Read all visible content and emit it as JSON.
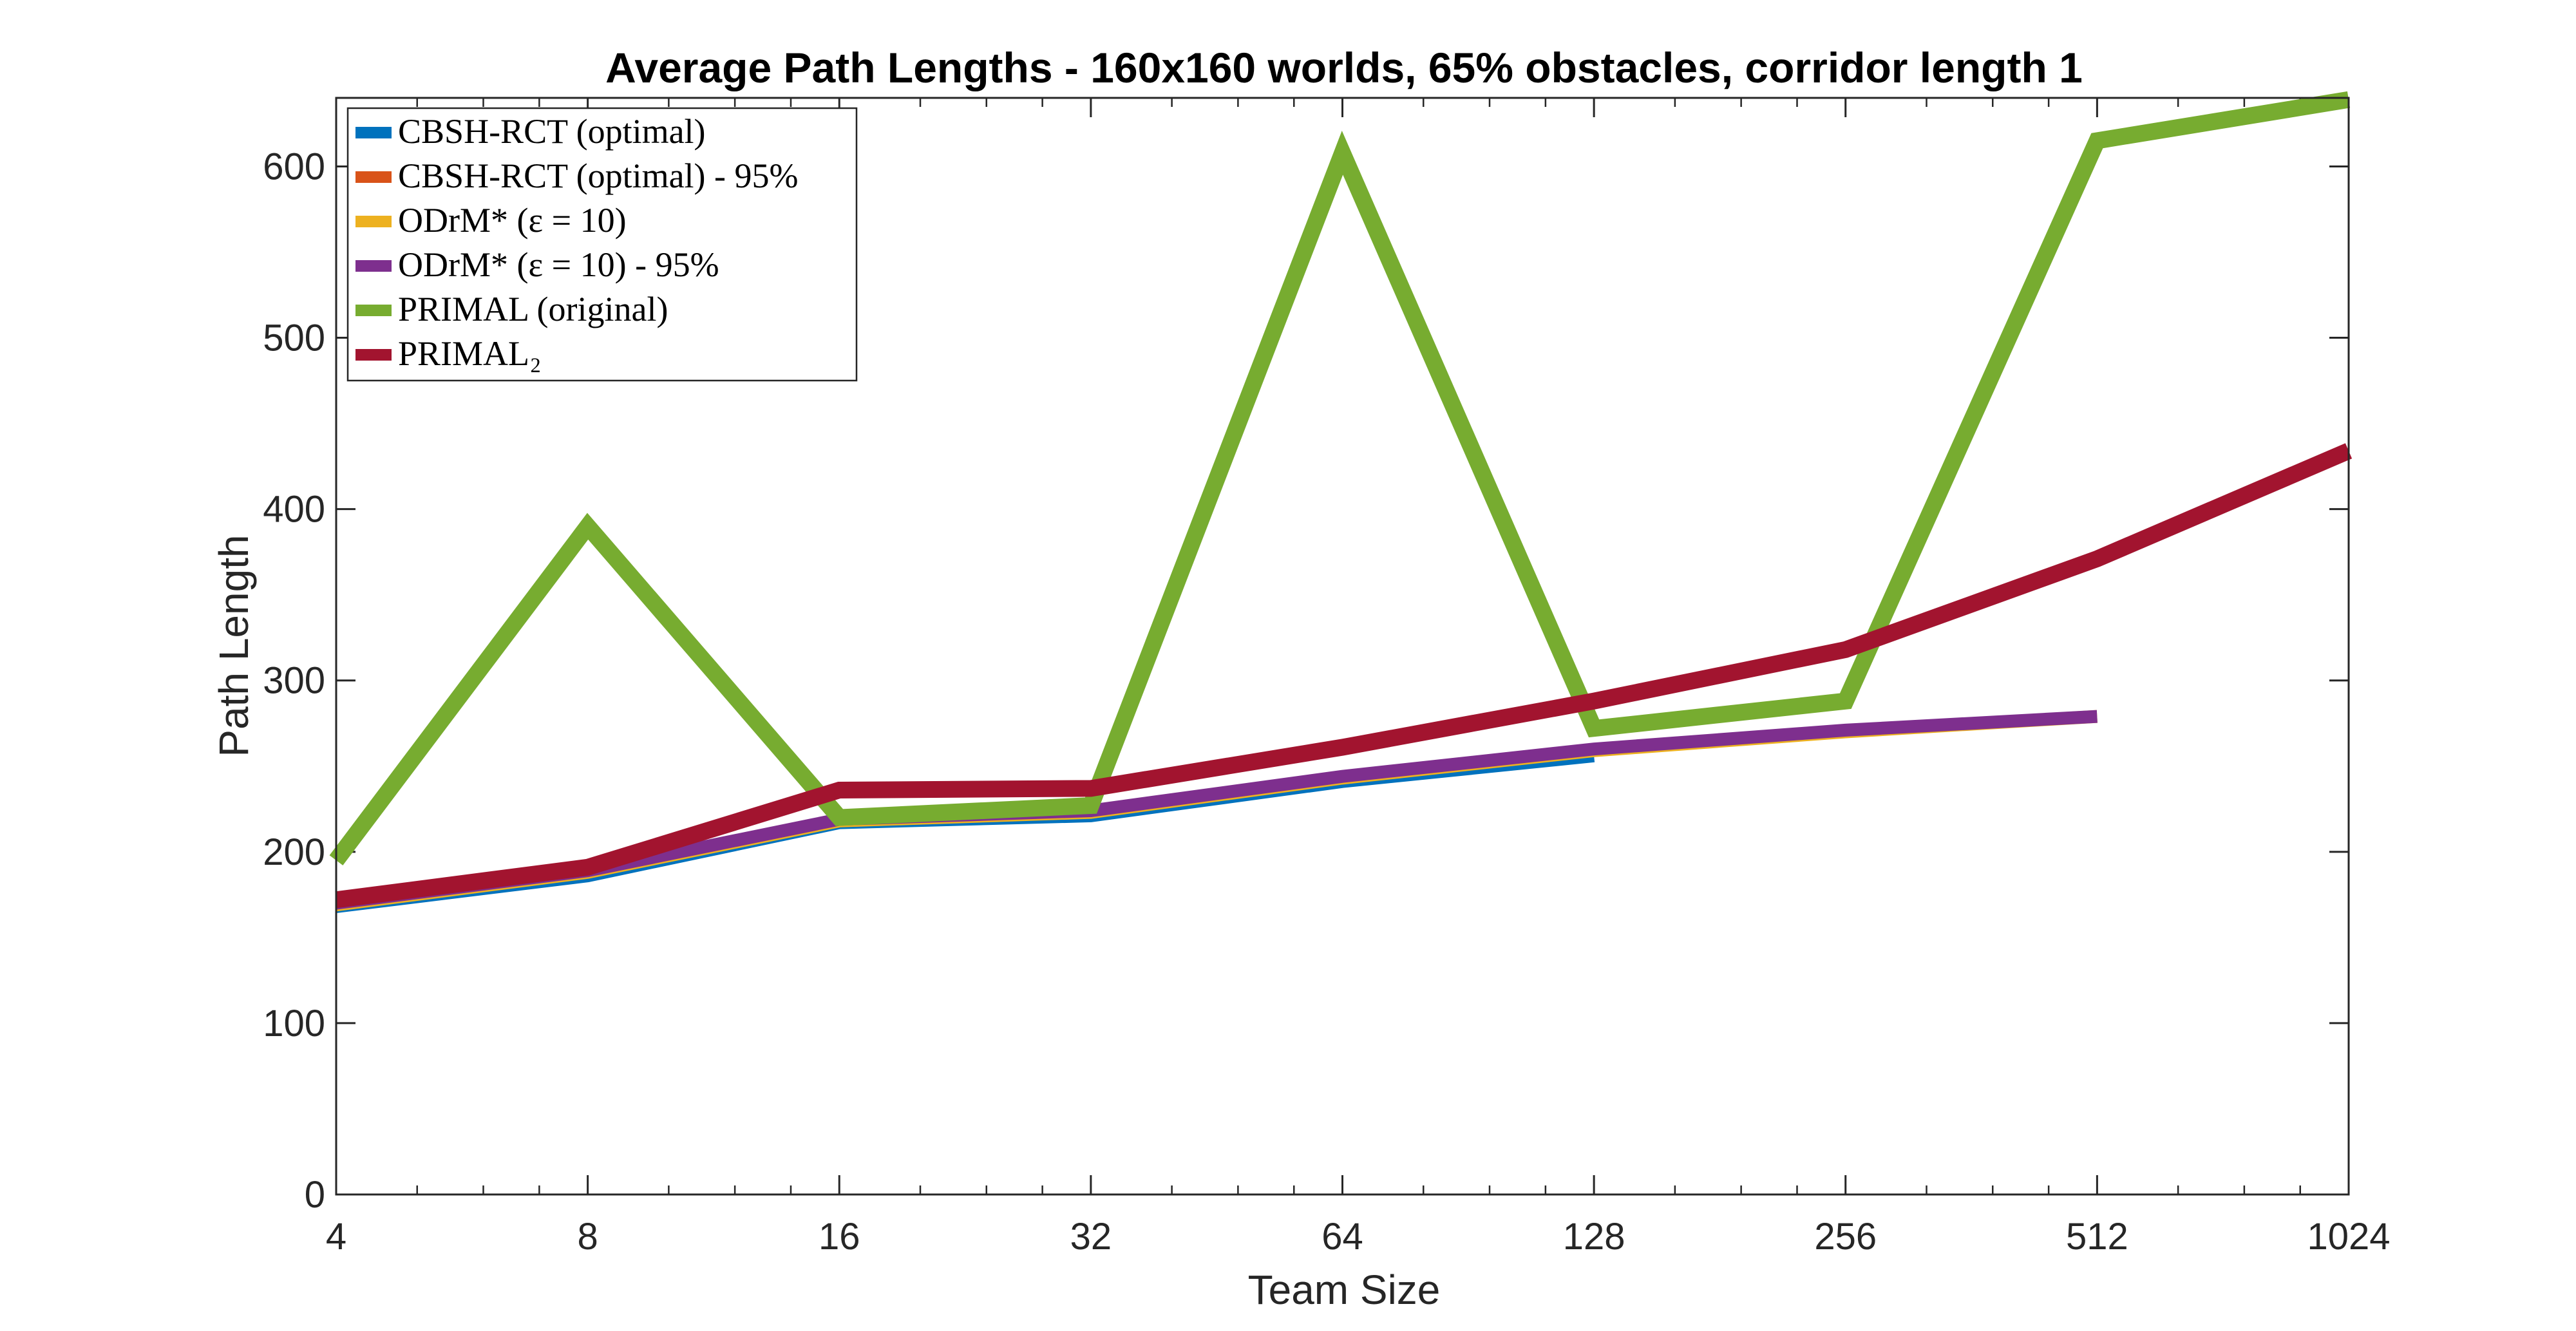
{
  "chart_data": {
    "type": "line",
    "title": "Average Path Lengths - 160x160 worlds, 65% obstacles, corridor length 1",
    "xlabel": "Team Size",
    "ylabel": "Path Length",
    "x_scale": "log2",
    "x": [
      4,
      8,
      16,
      32,
      64,
      128,
      256,
      512,
      1024
    ],
    "xticks": [
      "4",
      "8",
      "16",
      "32",
      "64",
      "128",
      "256",
      "512",
      "1024"
    ],
    "ylim": [
      0,
      640
    ],
    "yticks": [
      "0",
      "100",
      "200",
      "300",
      "400",
      "500",
      "600"
    ],
    "yticks_values": [
      0,
      100,
      200,
      300,
      400,
      500,
      600
    ],
    "legend_position": "top-left",
    "series": [
      {
        "name": "CBSH-RCT (optimal)",
        "color": "#0072BD",
        "x": [
          4,
          8,
          16,
          32,
          64,
          128
        ],
        "values": [
          168,
          186,
          217,
          221,
          241,
          256
        ]
      },
      {
        "name": "CBSH-RCT (optimal) - 95%",
        "color": "#D95319",
        "x": [
          4,
          8,
          16,
          32,
          64,
          128
        ],
        "values": [
          169,
          187,
          218,
          222,
          242,
          257
        ]
      },
      {
        "name": "ODrM* (ε = 10)",
        "color": "#EDB120",
        "x": [
          4,
          8,
          16,
          32,
          64,
          128,
          256,
          512
        ],
        "values": [
          169,
          188,
          218,
          223,
          243,
          259,
          270,
          279
        ]
      },
      {
        "name": "ODrM* (ε = 10) - 95%",
        "color": "#7E2F8E",
        "x": [
          4,
          8,
          16,
          32,
          64,
          128,
          256,
          512
        ],
        "values": [
          170,
          189,
          219,
          224,
          244,
          260,
          271,
          279
        ]
      },
      {
        "name": "PRIMAL (original)",
        "color": "#77AC30",
        "x": [
          4,
          8,
          16,
          32,
          64,
          128,
          256,
          512,
          1024
        ],
        "values": [
          195,
          390,
          220,
          227,
          608,
          272,
          288,
          615,
          639
        ]
      },
      {
        "name": "PRIMAL₂",
        "color": "#A2142F",
        "x": [
          4,
          8,
          16,
          32,
          64,
          128,
          256,
          512,
          1024
        ],
        "values": [
          172,
          191,
          236,
          237,
          261,
          288,
          318,
          371,
          434
        ]
      }
    ]
  }
}
